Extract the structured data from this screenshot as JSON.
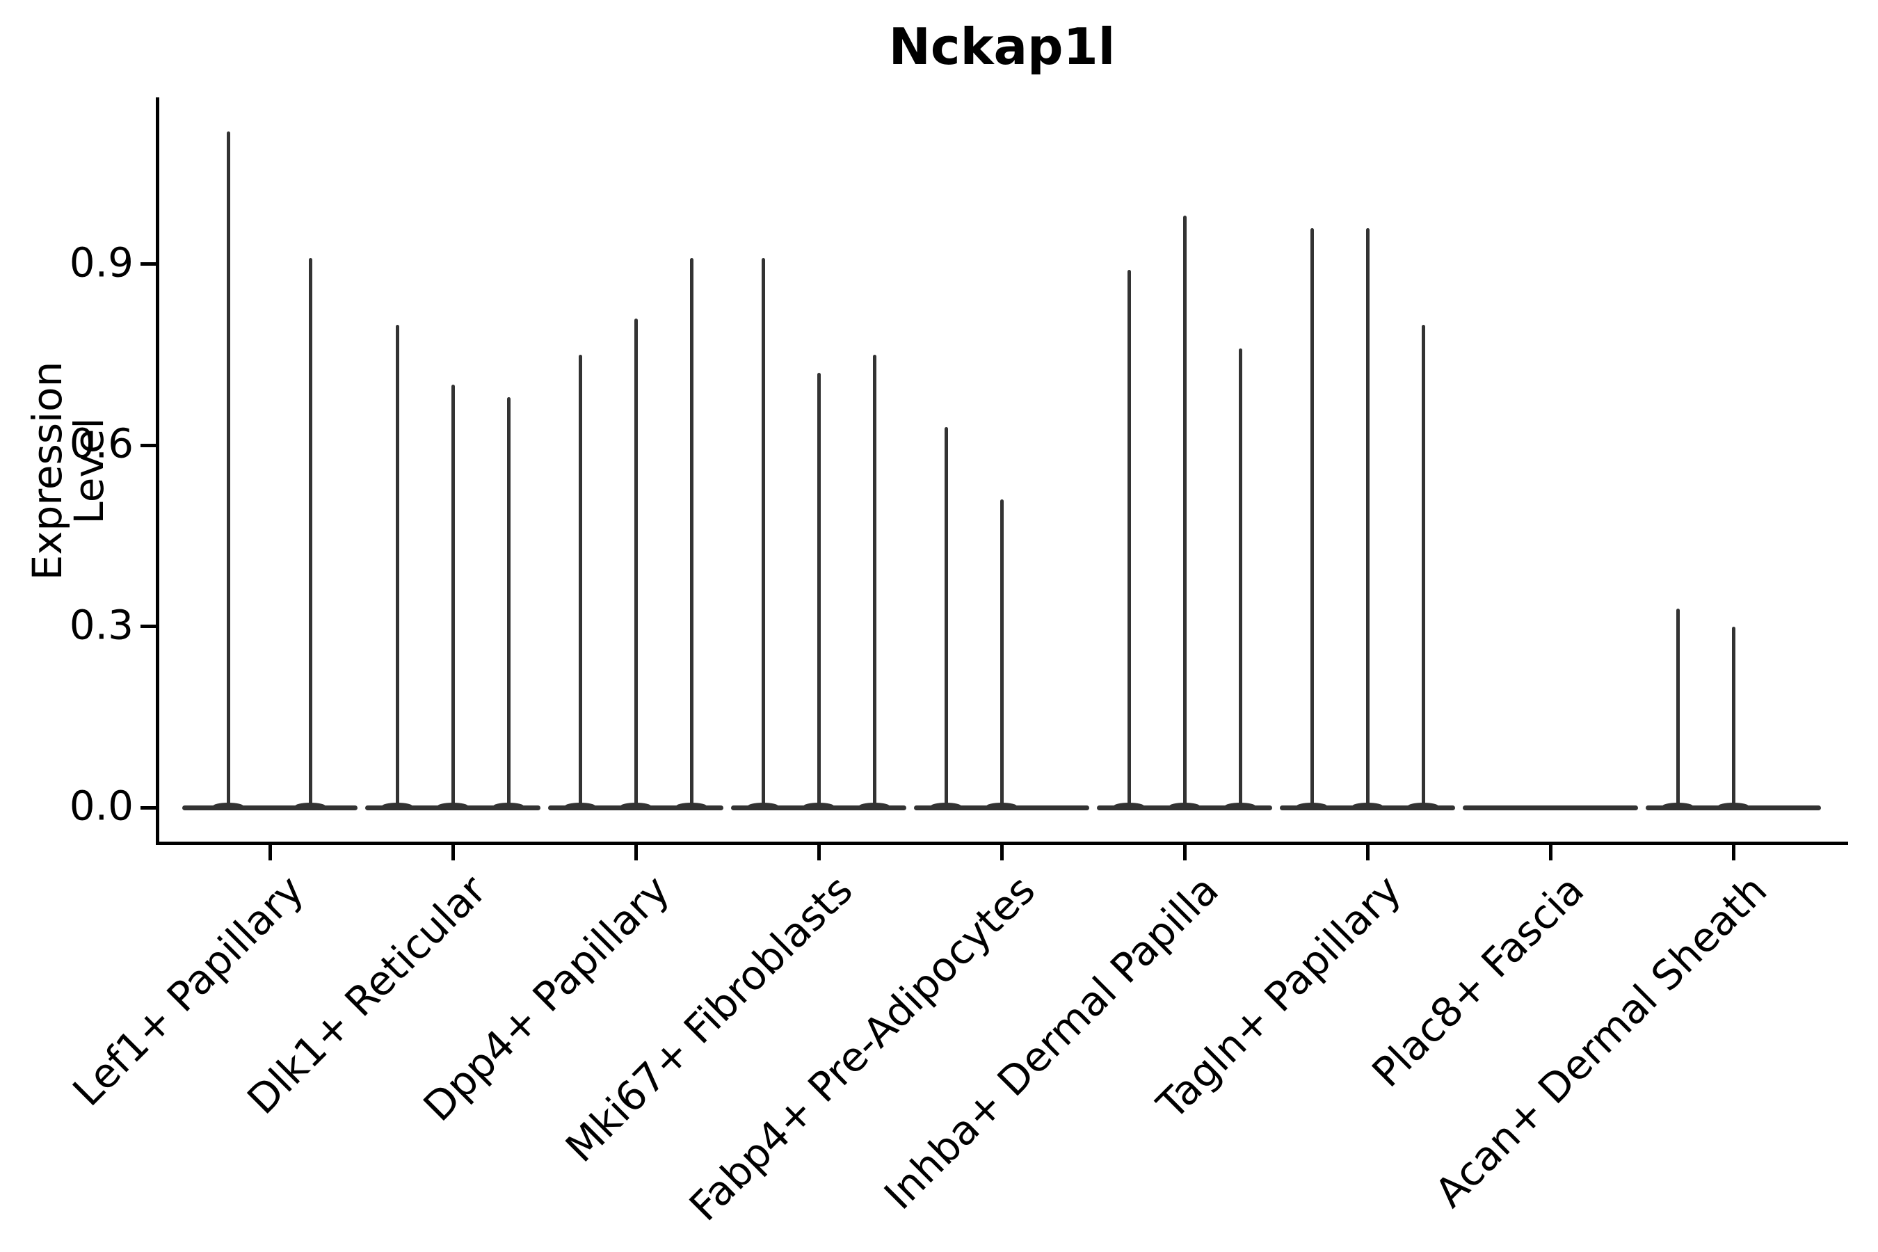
{
  "figure": {
    "background": "#ffffff"
  },
  "chart_data": {
    "type": "violin",
    "title": "Nckap1l",
    "xlabel": "",
    "ylabel": "Expression Level",
    "ytick_labels": [
      "0.0",
      "0.3",
      "0.6",
      "0.9"
    ],
    "ytick_values": [
      0.0,
      0.3,
      0.6,
      0.9
    ],
    "ylim": [
      -0.06,
      1.18
    ],
    "grid": false,
    "legend": "none",
    "colors": {
      "violin": "#333333",
      "axis": "#000000",
      "text": "#000000",
      "background": "#ffffff"
    },
    "categories": [
      "Lef1+ Papillary",
      "Dlk1+ Reticular",
      "Dpp4+ Papillary",
      "Mki67+ Fibroblasts",
      "Fabp4+ Pre-Adipocytes",
      "Inhba+ Dermal Papilla",
      "Tagln+ Papillary",
      "Plac8+ Fascia",
      "Acan+ Dermal Sheath"
    ],
    "violins": [
      {
        "category": "Lef1+ Papillary",
        "spikes": [
          {
            "dx": -60,
            "peak": 1.12
          },
          {
            "dx": 58,
            "peak": 0.91
          }
        ]
      },
      {
        "category": "Dlk1+ Reticular",
        "spikes": [
          {
            "dx": -80,
            "peak": 0.8
          },
          {
            "dx": 0,
            "peak": 0.7
          },
          {
            "dx": 80,
            "peak": 0.68
          }
        ]
      },
      {
        "category": "Dpp4+ Papillary",
        "spikes": [
          {
            "dx": -80,
            "peak": 0.75
          },
          {
            "dx": 0,
            "peak": 0.81
          },
          {
            "dx": 80,
            "peak": 0.91
          }
        ]
      },
      {
        "category": "Mki67+ Fibroblasts",
        "spikes": [
          {
            "dx": -80,
            "peak": 0.91
          },
          {
            "dx": 0,
            "peak": 0.72
          },
          {
            "dx": 80,
            "peak": 0.75
          }
        ]
      },
      {
        "category": "Fabp4+ Pre-Adipocytes",
        "spikes": [
          {
            "dx": -80,
            "peak": 0.63
          },
          {
            "dx": 0,
            "peak": 0.51
          }
        ]
      },
      {
        "category": "Inhba+ Dermal Papilla",
        "spikes": [
          {
            "dx": -80,
            "peak": 0.89
          },
          {
            "dx": 0,
            "peak": 0.98
          },
          {
            "dx": 80,
            "peak": 0.76
          }
        ]
      },
      {
        "category": "Tagln+ Papillary",
        "spikes": [
          {
            "dx": -80,
            "peak": 0.96
          },
          {
            "dx": 0,
            "peak": 0.96
          },
          {
            "dx": 80,
            "peak": 0.8
          }
        ]
      },
      {
        "category": "Plac8+ Fascia",
        "spikes": []
      },
      {
        "category": "Acan+ Dermal Sheath",
        "spikes": [
          {
            "dx": -80,
            "peak": 0.33
          },
          {
            "dx": 0,
            "peak": 0.3
          }
        ]
      }
    ]
  }
}
